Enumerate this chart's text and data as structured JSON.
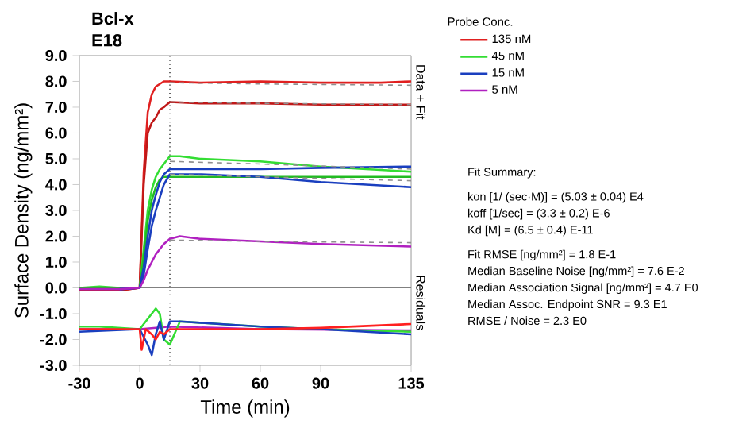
{
  "chart_data": {
    "type": "line",
    "title": "Bcl-x",
    "subtitle": "E18",
    "xlabel": "Time (min)",
    "ylabel": "Surface Density (ng/mm²)",
    "legend_title": "Probe Conc.",
    "xlim": [
      -30,
      135
    ],
    "xticks": [
      -30,
      0,
      30,
      60,
      90,
      135
    ],
    "ylim": [
      -3,
      9
    ],
    "yticks": [
      {
        "value": -3,
        "label": "-3.0"
      },
      {
        "value": -2,
        "label": "-2.0"
      },
      {
        "value": -1,
        "label": "-1.0"
      },
      {
        "value": 0,
        "label": "0.0"
      },
      {
        "value": 1,
        "label": "1.0"
      },
      {
        "value": 2,
        "label": "2.0"
      },
      {
        "value": 3,
        "label": "3.0"
      },
      {
        "value": 4,
        "label": "4.0"
      },
      {
        "value": 5,
        "label": "5.0"
      },
      {
        "value": 6,
        "label": "6.0"
      },
      {
        "value": 7,
        "label": "7.0"
      },
      {
        "value": 8,
        "label": "8.0"
      },
      {
        "value": 9,
        "label": "9.0"
      }
    ],
    "legend": "right",
    "series": [
      {
        "name": "135 nM",
        "color": "#e02020",
        "x": [
          -30,
          -20,
          -10,
          0,
          2,
          4,
          6,
          8,
          10,
          12,
          15,
          30,
          60,
          90,
          120,
          135
        ],
        "values": [
          -0.1,
          -0.1,
          -0.1,
          0,
          4.5,
          6.8,
          7.5,
          7.8,
          7.9,
          8.0,
          8.0,
          7.95,
          8.0,
          7.95,
          7.95,
          8.0
        ]
      },
      {
        "color": "#c01818",
        "x": [
          -30,
          -20,
          -10,
          0,
          2,
          4,
          6,
          8,
          10,
          12,
          15,
          30,
          60,
          90,
          120,
          135
        ],
        "values": [
          -0.1,
          -0.1,
          -0.1,
          0,
          4.0,
          6.0,
          6.4,
          6.6,
          6.9,
          7.0,
          7.2,
          7.15,
          7.15,
          7.1,
          7.1,
          7.1
        ]
      },
      {
        "name": "45 nM",
        "color": "#33dd33",
        "x": [
          -30,
          -20,
          -10,
          0,
          2,
          4,
          6,
          8,
          10,
          12,
          15,
          20,
          30,
          60,
          90,
          135
        ],
        "values": [
          0,
          0.05,
          0,
          0,
          1.5,
          3.0,
          3.8,
          4.3,
          4.6,
          4.8,
          5.1,
          5.1,
          5.0,
          4.9,
          4.7,
          4.5
        ]
      },
      {
        "color": "#22bb22",
        "x": [
          -30,
          -20,
          -10,
          0,
          2,
          4,
          6,
          8,
          10,
          12,
          15,
          30,
          60,
          90,
          135
        ],
        "values": [
          0,
          0,
          0,
          0,
          1.2,
          2.6,
          3.4,
          3.9,
          4.2,
          4.3,
          4.3,
          4.3,
          4.3,
          4.3,
          4.3
        ]
      },
      {
        "name": "15 nM",
        "color": "#1a3fbf",
        "x": [
          -10,
          0,
          2,
          4,
          6,
          8,
          10,
          12,
          15,
          30,
          60,
          90,
          135
        ],
        "values": [
          -0.05,
          0,
          0.8,
          2.0,
          3.0,
          3.6,
          4.1,
          4.4,
          4.6,
          4.6,
          4.6,
          4.65,
          4.7
        ]
      },
      {
        "color": "#1a3fbf",
        "x": [
          -10,
          0,
          2,
          4,
          6,
          8,
          10,
          12,
          15,
          30,
          60,
          90,
          135
        ],
        "values": [
          -0.05,
          0,
          0.5,
          1.5,
          2.4,
          3.0,
          3.5,
          4.0,
          4.4,
          4.4,
          4.3,
          4.1,
          3.9
        ]
      },
      {
        "name": "5 nM",
        "color": "#b020c0",
        "x": [
          -30,
          -20,
          -10,
          0,
          2,
          4,
          6,
          8,
          10,
          12,
          15,
          20,
          30,
          60,
          90,
          135
        ],
        "values": [
          -0.05,
          -0.05,
          -0.05,
          0,
          0.3,
          0.7,
          1.0,
          1.3,
          1.5,
          1.7,
          1.9,
          2.0,
          1.9,
          1.8,
          1.7,
          1.6
        ]
      },
      {
        "color": "#b020c0",
        "x": [
          -30,
          0,
          15,
          60,
          135
        ],
        "values": [
          -1.6,
          -1.6,
          -1.5,
          -1.6,
          -1.65
        ]
      },
      {
        "color": "#33dd33",
        "x": [
          -30,
          -20,
          0,
          3,
          5,
          8,
          10,
          12,
          15,
          20,
          60,
          90,
          135
        ],
        "values": [
          -1.5,
          -1.5,
          -1.6,
          -1.3,
          -1.1,
          -0.8,
          -1.0,
          -2.0,
          -2.2,
          -1.3,
          -1.5,
          -1.6,
          -1.7
        ]
      },
      {
        "color": "#1a3fbf",
        "x": [
          -30,
          0,
          2,
          4,
          6,
          8,
          10,
          12,
          15,
          20,
          60,
          90,
          135
        ],
        "values": [
          -1.7,
          -1.6,
          -1.9,
          -2.2,
          -2.6,
          -1.8,
          -1.3,
          -2.0,
          -1.3,
          -1.3,
          -1.5,
          -1.6,
          -1.8
        ]
      },
      {
        "color": "#ff2020",
        "x": [
          -30,
          -10,
          0,
          1,
          3,
          6,
          8,
          10,
          12,
          15,
          60,
          90,
          135
        ],
        "values": [
          -1.6,
          -1.6,
          -1.6,
          -2.4,
          -1.6,
          -1.8,
          -2.0,
          -1.7,
          -1.8,
          -1.6,
          -1.6,
          -1.55,
          -1.4
        ]
      },
      {
        "color": "#909090",
        "line_style": "dashed",
        "x": [
          15,
          60,
          135
        ],
        "values": [
          7.95,
          7.9,
          7.85
        ]
      },
      {
        "color": "#909090",
        "line_style": "dashed",
        "x": [
          15,
          60,
          135
        ],
        "values": [
          7.2,
          7.15,
          7.1
        ]
      },
      {
        "color": "#909090",
        "line_style": "dashed",
        "x": [
          15,
          60,
          135
        ],
        "values": [
          4.9,
          4.8,
          4.6
        ]
      },
      {
        "color": "#909090",
        "line_style": "dashed",
        "x": [
          15,
          60,
          135
        ],
        "values": [
          4.4,
          4.3,
          4.15
        ]
      },
      {
        "color": "#909090",
        "line_style": "dashed",
        "x": [
          15,
          60,
          135
        ],
        "values": [
          1.85,
          1.8,
          1.75
        ]
      }
    ],
    "ref_lines": [
      {
        "axis": "x",
        "value": 15,
        "color": "#000000",
        "line_style": "dotted"
      },
      {
        "axis": "y",
        "value": 0,
        "color": "#808080",
        "line_style": "solid"
      }
    ],
    "annotations": [
      "Data + Fit",
      "Residuals",
      "Fit Summary:",
      "kon  [1/ (sec·M)]  =   (5.03 ± 0.04) E4",
      "koff  [1/sec]  =   (3.3 ± 0.2) E-6",
      "Kd  [M]  =   (6.5 ± 0.4) E-11",
      "Fit RMSE [ng/mm²]  =   1.8 E-1",
      "Median Baseline Noise [ng/mm²]  =   7.6 E-2",
      "Median Association Signal [ng/mm²]  =   4.7 E0",
      "Median Assoc. Endpoint SNR  =   9.3 E1",
      "RMSE / Noise  =   2.3 E0"
    ]
  }
}
